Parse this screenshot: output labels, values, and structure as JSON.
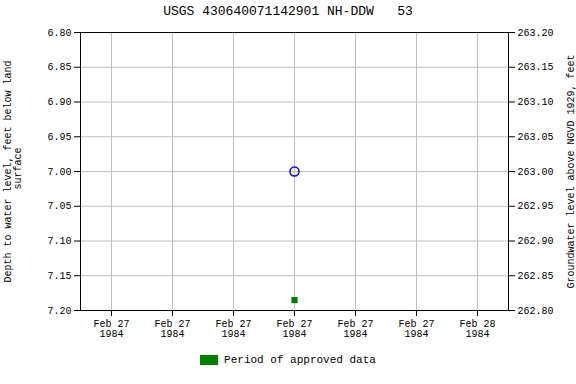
{
  "chart_data": {
    "type": "scatter",
    "title": "USGS 430640071142901 NH-DDW   53",
    "ylabel": "Depth to water level, feet below land\n surface",
    "y2label": "Groundwater level above NGVD 1929, feet",
    "categories": [
      "Feb 27\n1984",
      "Feb 27\n1984",
      "Feb 27\n1984",
      "Feb 27\n1984",
      "Feb 27\n1984",
      "Feb 27\n1984",
      "Feb 28\n1984"
    ],
    "series": [
      {
        "color": "blue",
        "marker": "open_circle",
        "values": [
          null,
          null,
          null,
          7.0,
          null,
          null,
          null
        ]
      },
      {
        "name": "Period of approved data",
        "color": "green",
        "marker": "square",
        "values": [
          null,
          null,
          null,
          7.185,
          null,
          null,
          null
        ]
      }
    ],
    "ylim": [
      7.2,
      6.8
    ],
    "yticks": [
      {
        "value": 6.8,
        "label": "6.80"
      },
      {
        "value": 6.85,
        "label": "6.85"
      },
      {
        "value": 6.9,
        "label": "6.90"
      },
      {
        "value": 6.95,
        "label": "6.95"
      },
      {
        "value": 7.0,
        "label": "7.00"
      },
      {
        "value": 7.05,
        "label": "7.05"
      },
      {
        "value": 7.1,
        "label": "7.10"
      },
      {
        "value": 7.15,
        "label": "7.15"
      },
      {
        "value": 7.2,
        "label": "7.20"
      }
    ],
    "y2lim": [
      262.8,
      263.2
    ],
    "y2ticks": [
      {
        "value": 262.8,
        "label": "262.80"
      },
      {
        "value": 262.85,
        "label": "262.85"
      },
      {
        "value": 262.9,
        "label": "262.90"
      },
      {
        "value": 262.95,
        "label": "262.95"
      },
      {
        "value": 263.0,
        "label": "263.00"
      },
      {
        "value": 263.05,
        "label": "263.05"
      },
      {
        "value": 263.1,
        "label": "263.10"
      },
      {
        "value": 263.15,
        "label": "263.15"
      },
      {
        "value": 263.2,
        "label": "263.20"
      }
    ],
    "grid": true,
    "legend": "bottom"
  }
}
